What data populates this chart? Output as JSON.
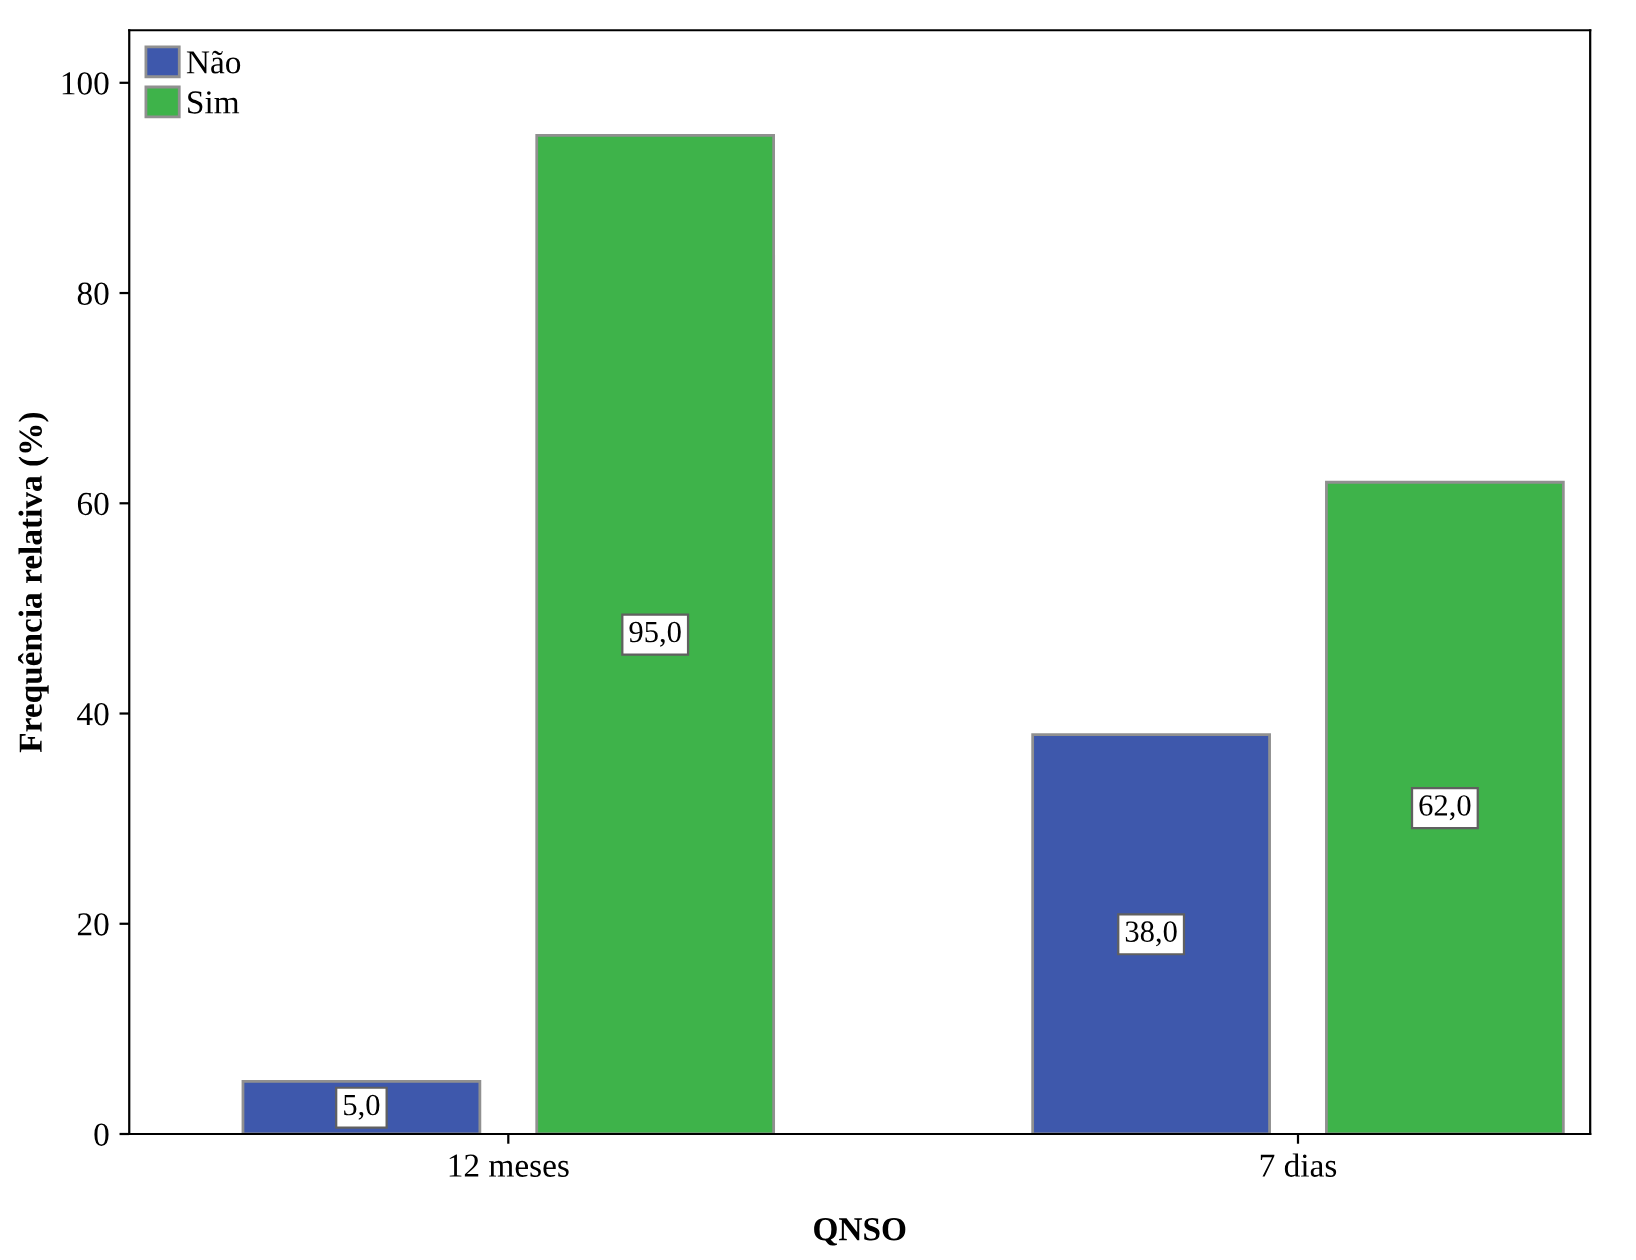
{
  "chart_data": {
    "type": "bar",
    "xlabel": "QNSO",
    "ylabel": "Frequência relativa (%)",
    "categories": [
      "12 meses",
      "7 dias"
    ],
    "series": [
      {
        "name": "Não",
        "color": "#3e58ac",
        "values": [
          5.0,
          38.0
        ],
        "value_labels": [
          "5,0",
          "38,0"
        ]
      },
      {
        "name": "Sim",
        "color": "#3eb34a",
        "values": [
          95.0,
          62.0
        ],
        "value_labels": [
          "95,0",
          "62,0"
        ]
      }
    ],
    "ylim": [
      0,
      105
    ],
    "yticks": [
      0,
      20,
      40,
      60,
      80,
      100
    ],
    "grid": false,
    "legend": "top left"
  }
}
